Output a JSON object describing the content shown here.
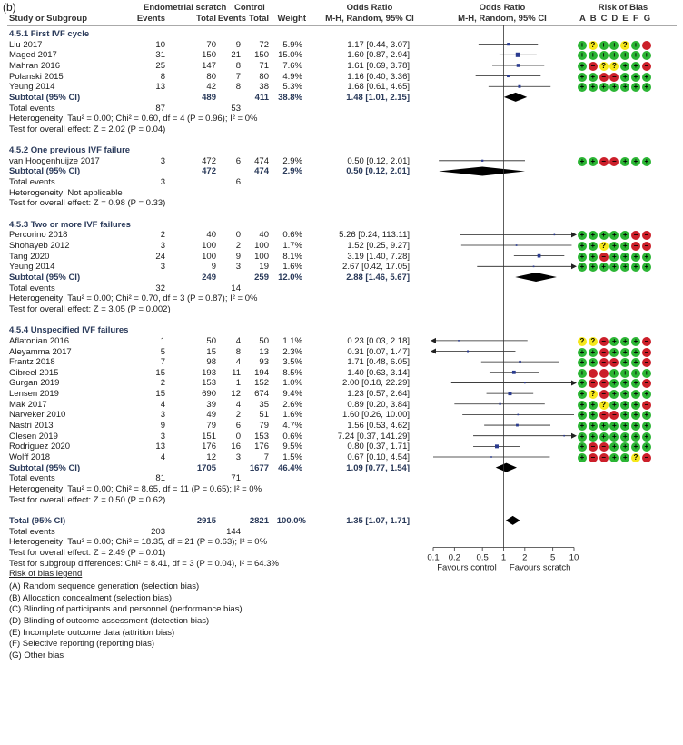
{
  "panel_label": "(b)",
  "headers": {
    "study": "Study or Subgroup",
    "scratch_group": "Endometrial scratch",
    "control_group": "Control",
    "events": "Events",
    "total": "Total",
    "weight": "Weight",
    "or_title": "Odds Ratio",
    "or_method": "M-H, Random, 95% CI",
    "rob_title": "Risk of Bias",
    "rob_letters": [
      "A",
      "B",
      "C",
      "D",
      "E",
      "F",
      "G"
    ]
  },
  "colors": {
    "plus": "#2bb534",
    "minus": "#cc1f2a",
    "unclear": "#f6e81b",
    "point": "#2a3b8f"
  },
  "chart_data": {
    "type": "forest",
    "x_axis": {
      "scale": "log",
      "ticks": [
        "0.1",
        "0.2",
        "0.5",
        "1",
        "2",
        "5",
        "10"
      ],
      "tick_values": [
        0.1,
        0.2,
        0.5,
        1,
        2,
        5,
        10
      ],
      "range": [
        0.1,
        10
      ]
    },
    "favours_left": "Favours control",
    "favours_right": "Favours scratch",
    "subgroups": [
      {
        "title": "4.5.1 First IVF cycle",
        "studies": [
          {
            "name": "Liu 2017",
            "e1": "10",
            "t1": "70",
            "e2": "9",
            "t2": "72",
            "weight": "5.9%",
            "ci": "1.17 [0.44, 3.07]",
            "or": 1.17,
            "lo": 0.44,
            "hi": 3.07,
            "rob": [
              "+",
              "?",
              "+",
              "+",
              "?",
              "+",
              "-"
            ]
          },
          {
            "name": "Maged 2017",
            "e1": "31",
            "t1": "150",
            "e2": "21",
            "t2": "150",
            "weight": "15.0%",
            "ci": "1.60 [0.87, 2.94]",
            "or": 1.6,
            "lo": 0.87,
            "hi": 2.94,
            "rob": [
              "+",
              "+",
              "+",
              "+",
              "+",
              "+",
              "+"
            ]
          },
          {
            "name": "Mahran 2016",
            "e1": "25",
            "t1": "147",
            "e2": "8",
            "t2": "71",
            "weight": "7.6%",
            "ci": "1.61 [0.69, 3.78]",
            "or": 1.61,
            "lo": 0.69,
            "hi": 3.78,
            "rob": [
              "+",
              "-",
              "?",
              "?",
              "+",
              "+",
              "-"
            ]
          },
          {
            "name": "Polanski 2015",
            "e1": "8",
            "t1": "80",
            "e2": "7",
            "t2": "80",
            "weight": "4.9%",
            "ci": "1.16 [0.40, 3.36]",
            "or": 1.16,
            "lo": 0.4,
            "hi": 3.36,
            "rob": [
              "+",
              "+",
              "-",
              "-",
              "+",
              "+",
              "+"
            ]
          },
          {
            "name": "Yeung 2014",
            "e1": "13",
            "t1": "42",
            "e2": "8",
            "t2": "38",
            "weight": "5.3%",
            "ci": "1.68 [0.61, 4.65]",
            "or": 1.68,
            "lo": 0.61,
            "hi": 4.65,
            "rob": [
              "+",
              "+",
              "+",
              "+",
              "+",
              "+",
              "+"
            ]
          }
        ],
        "subtotal": {
          "label": "Subtotal (95% CI)",
          "t1": "489",
          "t2": "411",
          "weight": "38.8%",
          "ci": "1.48 [1.01, 2.15]",
          "or": 1.48,
          "lo": 1.01,
          "hi": 2.15
        },
        "total_events": {
          "label": "Total events",
          "e1": "87",
          "e2": "53"
        },
        "heterogeneity": "Heterogeneity: Tau² = 0.00; Chi² = 0.60, df = 4 (P = 0.96); I² = 0%",
        "overall": "Test for overall effect: Z = 2.02 (P = 0.04)"
      },
      {
        "title": "4.5.2 One previous IVF failure",
        "studies": [
          {
            "name": "van Hoogenhuijze 2017",
            "e1": "3",
            "t1": "472",
            "e2": "6",
            "t2": "474",
            "weight": "2.9%",
            "ci": "0.50 [0.12, 2.01]",
            "or": 0.5,
            "lo": 0.12,
            "hi": 2.01,
            "rob": [
              "+",
              "+",
              "-",
              "-",
              "+",
              "+",
              "+"
            ]
          }
        ],
        "subtotal": {
          "label": "Subtotal (95% CI)",
          "t1": "472",
          "t2": "474",
          "weight": "2.9%",
          "ci": "0.50 [0.12, 2.01]",
          "or": 0.5,
          "lo": 0.12,
          "hi": 2.01
        },
        "total_events": {
          "label": "Total events",
          "e1": "3",
          "e2": "6"
        },
        "heterogeneity": "Heterogeneity: Not applicable",
        "overall": "Test for overall effect: Z = 0.98 (P = 0.33)"
      },
      {
        "title": "4.5.3 Two or more IVF failures",
        "studies": [
          {
            "name": "Percorino 2018",
            "e1": "2",
            "t1": "40",
            "e2": "0",
            "t2": "40",
            "weight": "0.6%",
            "ci": "5.26 [0.24, 113.11]",
            "or": 5.26,
            "lo": 0.24,
            "hi": 113.11,
            "rob": [
              "+",
              "+",
              "+",
              "+",
              "+",
              "-",
              "-"
            ]
          },
          {
            "name": "Shohayeb 2012",
            "e1": "3",
            "t1": "100",
            "e2": "2",
            "t2": "100",
            "weight": "1.7%",
            "ci": "1.52 [0.25, 9.27]",
            "or": 1.52,
            "lo": 0.25,
            "hi": 9.27,
            "rob": [
              "+",
              "+",
              "?",
              "+",
              "+",
              "-",
              "-"
            ]
          },
          {
            "name": "Tang 2020",
            "e1": "24",
            "t1": "100",
            "e2": "9",
            "t2": "100",
            "weight": "8.1%",
            "ci": "3.19 [1.40, 7.28]",
            "or": 3.19,
            "lo": 1.4,
            "hi": 7.28,
            "rob": [
              "+",
              "+",
              "-",
              "+",
              "+",
              "+",
              "+"
            ]
          },
          {
            "name": "Yeung 2014",
            "e1": "3",
            "t1": "9",
            "e2": "3",
            "t2": "19",
            "weight": "1.6%",
            "ci": "2.67 [0.42, 17.05]",
            "or": 2.67,
            "lo": 0.42,
            "hi": 17.05,
            "rob": [
              "+",
              "+",
              "+",
              "+",
              "+",
              "+",
              "+"
            ]
          }
        ],
        "subtotal": {
          "label": "Subtotal (95% CI)",
          "t1": "249",
          "t2": "259",
          "weight": "12.0%",
          "ci": "2.88 [1.46, 5.67]",
          "or": 2.88,
          "lo": 1.46,
          "hi": 5.67
        },
        "total_events": {
          "label": "Total events",
          "e1": "32",
          "e2": "14"
        },
        "heterogeneity": "Heterogeneity: Tau² = 0.00; Chi² = 0.70, df = 3 (P = 0.87); I² = 0%",
        "overall": "Test for overall effect: Z = 3.05 (P = 0.002)"
      },
      {
        "title": "4.5.4 Unspecified IVF failures",
        "studies": [
          {
            "name": "Aflatonian 2016",
            "e1": "1",
            "t1": "50",
            "e2": "4",
            "t2": "50",
            "weight": "1.1%",
            "ci": "0.23 [0.03, 2.18]",
            "or": 0.23,
            "lo": 0.03,
            "hi": 2.18,
            "rob": [
              "?",
              "?",
              "-",
              "+",
              "+",
              "+",
              "-"
            ]
          },
          {
            "name": "Aleyamma 2017",
            "e1": "5",
            "t1": "15",
            "e2": "8",
            "t2": "13",
            "weight": "2.3%",
            "ci": "0.31 [0.07, 1.47]",
            "or": 0.31,
            "lo": 0.07,
            "hi": 1.47,
            "rob": [
              "+",
              "+",
              "-",
              "+",
              "+",
              "+",
              "-"
            ]
          },
          {
            "name": "Frantz 2018",
            "e1": "7",
            "t1": "98",
            "e2": "4",
            "t2": "93",
            "weight": "3.5%",
            "ci": "1.71 [0.48, 6.05]",
            "or": 1.71,
            "lo": 0.48,
            "hi": 6.05,
            "rob": [
              "+",
              "+",
              "-",
              "-",
              "+",
              "+",
              "-"
            ]
          },
          {
            "name": "Gibreel 2015",
            "e1": "15",
            "t1": "193",
            "e2": "11",
            "t2": "194",
            "weight": "8.5%",
            "ci": "1.40 [0.63, 3.14]",
            "or": 1.4,
            "lo": 0.63,
            "hi": 3.14,
            "rob": [
              "+",
              "-",
              "-",
              "+",
              "+",
              "+",
              "+"
            ]
          },
          {
            "name": "Gurgan 2019",
            "e1": "2",
            "t1": "153",
            "e2": "1",
            "t2": "152",
            "weight": "1.0%",
            "ci": "2.00 [0.18, 22.29]",
            "or": 2.0,
            "lo": 0.18,
            "hi": 22.29,
            "rob": [
              "+",
              "-",
              "-",
              "+",
              "+",
              "+",
              "-"
            ]
          },
          {
            "name": "Lensen 2019",
            "e1": "15",
            "t1": "690",
            "e2": "12",
            "t2": "674",
            "weight": "9.4%",
            "ci": "1.23 [0.57, 2.64]",
            "or": 1.23,
            "lo": 0.57,
            "hi": 2.64,
            "rob": [
              "+",
              "?",
              "-",
              "+",
              "+",
              "+",
              "+"
            ]
          },
          {
            "name": "Mak 2017",
            "e1": "4",
            "t1": "39",
            "e2": "4",
            "t2": "35",
            "weight": "2.6%",
            "ci": "0.89 [0.20, 3.84]",
            "or": 0.89,
            "lo": 0.2,
            "hi": 3.84,
            "rob": [
              "+",
              "+",
              "?",
              "+",
              "+",
              "+",
              "-"
            ]
          },
          {
            "name": "Narveker 2010",
            "e1": "3",
            "t1": "49",
            "e2": "2",
            "t2": "51",
            "weight": "1.6%",
            "ci": "1.60 [0.26, 10.00]",
            "or": 1.6,
            "lo": 0.26,
            "hi": 10.0,
            "rob": [
              "+",
              "+",
              "-",
              "-",
              "+",
              "+",
              "+"
            ]
          },
          {
            "name": "Nastri 2013",
            "e1": "9",
            "t1": "79",
            "e2": "6",
            "t2": "79",
            "weight": "4.7%",
            "ci": "1.56 [0.53, 4.62]",
            "or": 1.56,
            "lo": 0.53,
            "hi": 4.62,
            "rob": [
              "+",
              "+",
              "+",
              "+",
              "+",
              "+",
              "+"
            ]
          },
          {
            "name": "Olesen 2019",
            "e1": "3",
            "t1": "151",
            "e2": "0",
            "t2": "153",
            "weight": "0.6%",
            "ci": "7.24 [0.37, 141.29]",
            "or": 7.24,
            "lo": 0.37,
            "hi": 141.29,
            "rob": [
              "+",
              "+",
              "+",
              "+",
              "+",
              "+",
              "+"
            ]
          },
          {
            "name": "Rodriguez 2020",
            "e1": "13",
            "t1": "176",
            "e2": "16",
            "t2": "176",
            "weight": "9.5%",
            "ci": "0.80 [0.37, 1.71]",
            "or": 0.8,
            "lo": 0.37,
            "hi": 1.71,
            "rob": [
              "+",
              "-",
              "-",
              "+",
              "+",
              "+",
              "+"
            ]
          },
          {
            "name": "Wolff 2018",
            "e1": "4",
            "t1": "12",
            "e2": "3",
            "t2": "7",
            "weight": "1.5%",
            "ci": "0.67 [0.10, 4.54]",
            "or": 0.67,
            "lo": 0.1,
            "hi": 4.54,
            "rob": [
              "+",
              "-",
              "-",
              "+",
              "+",
              "?",
              "-"
            ]
          }
        ],
        "subtotal": {
          "label": "Subtotal (95% CI)",
          "t1": "1705",
          "t2": "1677",
          "weight": "46.4%",
          "ci": "1.09 [0.77, 1.54]",
          "or": 1.09,
          "lo": 0.77,
          "hi": 1.54
        },
        "total_events": {
          "label": "Total events",
          "e1": "81",
          "e2": "71"
        },
        "heterogeneity": "Heterogeneity: Tau² = 0.00; Chi² = 8.65, df = 11 (P = 0.65); I² = 0%",
        "overall": "Test for overall effect: Z = 0.50 (P = 0.62)"
      }
    ],
    "total": {
      "label": "Total (95% CI)",
      "t1": "2915",
      "t2": "2821",
      "weight": "100.0%",
      "ci": "1.35 [1.07, 1.71]",
      "or": 1.35,
      "lo": 1.07,
      "hi": 1.71
    },
    "total_events": {
      "label": "Total events",
      "e1": "203",
      "e2": "144"
    },
    "heterogeneity": "Heterogeneity: Tau² = 0.00; Chi² = 18.35, df = 21 (P = 0.63); I² = 0%",
    "overall": "Test for overall effect: Z = 2.49 (P = 0.01)",
    "subgroup_diff": "Test for subgroup differences: Chi² = 8.41, df = 3 (P = 0.04), I² = 64.3%"
  },
  "legend": {
    "title": "Risk of bias legend",
    "items": [
      "(A) Random sequence generation (selection bias)",
      "(B) Allocation concealment (selection bias)",
      "(C) Blinding of participants and personnel (performance bias)",
      "(D) Blinding of outcome assessment (detection bias)",
      "(E) Incomplete outcome data (attrition bias)",
      "(F) Selective reporting (reporting bias)",
      "(G) Other bias"
    ]
  }
}
